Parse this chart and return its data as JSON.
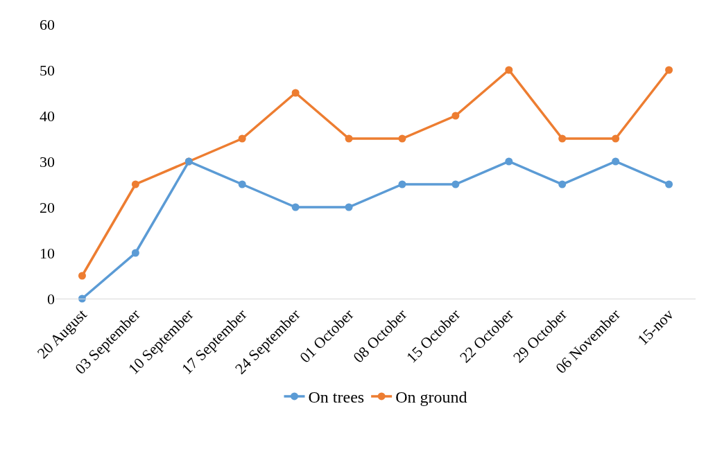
{
  "chart_data": {
    "type": "line",
    "categories": [
      "20 August",
      "03 September",
      "10 September",
      "17 September",
      "24 September",
      "01 October",
      "08 October",
      "15 October",
      "22 October",
      "29 October",
      "06 November",
      "15-nov"
    ],
    "series": [
      {
        "name": "On trees",
        "color": "#5b9bd5",
        "values": [
          0,
          10,
          30,
          25,
          20,
          20,
          25,
          25,
          30,
          25,
          30,
          25
        ]
      },
      {
        "name": "On ground",
        "color": "#ed7d31",
        "values": [
          5,
          25,
          30,
          35,
          45,
          35,
          35,
          40,
          50,
          35,
          35,
          50
        ]
      }
    ],
    "ylim": [
      0,
      60
    ],
    "yticks": [
      0,
      10,
      20,
      30,
      40,
      50,
      60
    ],
    "grid": false,
    "legend": "bottom",
    "marker": "circle",
    "line_style": "solid"
  }
}
